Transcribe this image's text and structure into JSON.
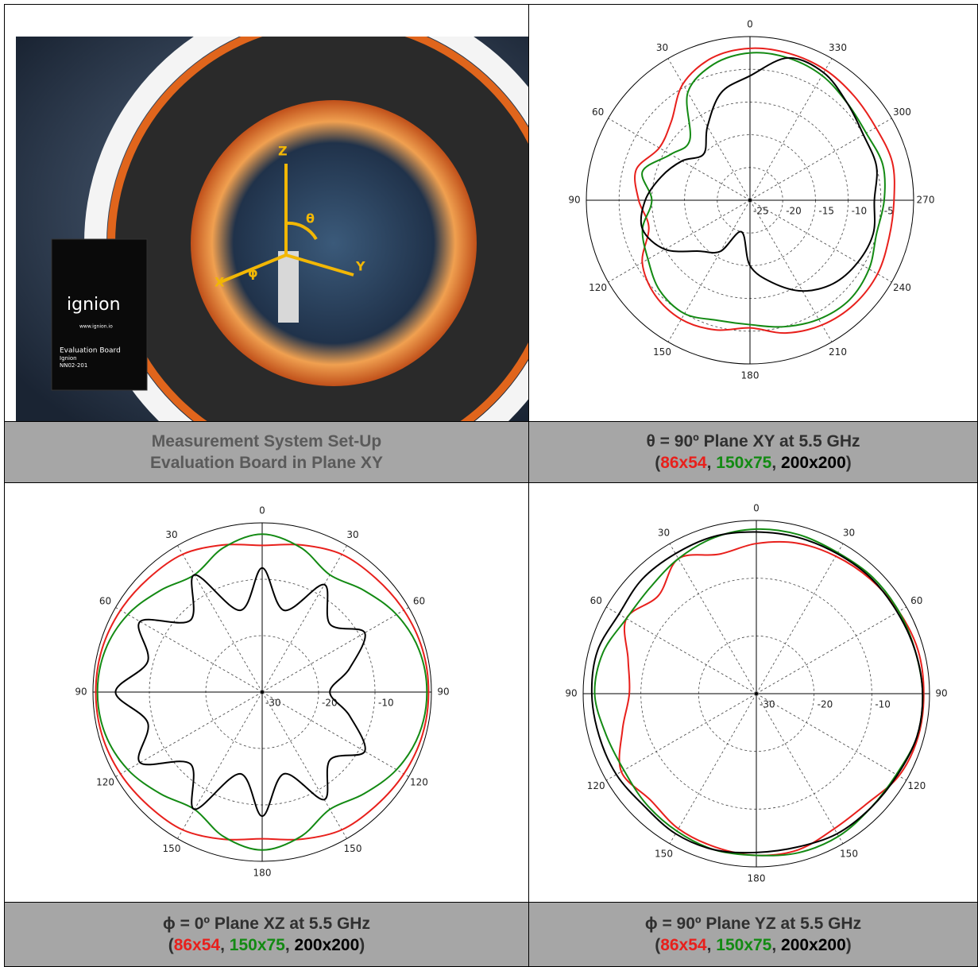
{
  "photo": {
    "caption": [
      "Measurement System Set-Up",
      "Evaluation Board in Plane XY"
    ],
    "texts": [
      "ignion",
      "www.ignion.io",
      "Evaluation Board",
      "Ignion",
      "NN02-201"
    ],
    "axes": [
      "Z",
      "θ",
      "X",
      "Y",
      "ϕ"
    ]
  },
  "chart_data": [
    {
      "type": "polar",
      "title": "θ = 90º Plane XY at 5.5 GHz",
      "legend_open": "(",
      "legend_separator": ", ",
      "legend_close": ")",
      "rlim": [
        -25,
        0
      ],
      "rticks": [
        -25,
        -20,
        -15,
        -10,
        -5
      ],
      "thetaticks": [
        0,
        30,
        60,
        90,
        120,
        150,
        180,
        210,
        240,
        270,
        300,
        330
      ],
      "x": [
        0,
        15,
        30,
        45,
        60,
        75,
        90,
        105,
        120,
        135,
        150,
        165,
        180,
        195,
        210,
        225,
        240,
        255,
        270,
        285,
        300,
        315,
        330,
        345
      ],
      "series": [
        {
          "name": "86x54",
          "color": "#e8201c",
          "values": [
            -1.8,
            -2.5,
            -4.5,
            -8,
            -9,
            -7,
            -8,
            -9,
            -6,
            -4.5,
            -4,
            -4.5,
            -5.5,
            -4,
            -3,
            -2.5,
            -2.5,
            -3,
            -3,
            -2.5,
            -2.8,
            -2.5,
            -2,
            -1.8
          ]
        },
        {
          "name": "150x75",
          "color": "#138a13",
          "values": [
            -2.5,
            -3.5,
            -6,
            -12,
            -11,
            -8,
            -10,
            -8,
            -7,
            -5.5,
            -5,
            -6,
            -6,
            -5,
            -4,
            -3.5,
            -4,
            -5,
            -4.5,
            -4,
            -4.5,
            -4,
            -3,
            -2.5
          ]
        },
        {
          "name": "200x200",
          "color": "#000000",
          "values": [
            -6,
            -8,
            -12,
            -15,
            -13,
            -11,
            -9,
            -8,
            -10,
            -14,
            -16,
            -20,
            -15,
            -12,
            -9,
            -7,
            -6,
            -5.5,
            -6,
            -5,
            -5,
            -4,
            -2.5,
            -2.5
          ]
        }
      ]
    },
    {
      "type": "polar",
      "title": "ϕ = 0º Plane XZ at 5.5 GHz",
      "legend_open": "(",
      "legend_separator": ", ",
      "legend_close": ")",
      "rlim": [
        -30,
        0
      ],
      "rticks": [
        -30,
        -20,
        -10
      ],
      "thetaticks": [
        0,
        30,
        60,
        90,
        120,
        150,
        180,
        {
          "value": 210,
          "label": "150"
        },
        {
          "value": 240,
          "label": "120"
        },
        {
          "value": 270,
          "label": "90"
        },
        {
          "value": 300,
          "label": "60"
        },
        {
          "value": 330,
          "label": "30"
        }
      ],
      "x": [
        0,
        15,
        30,
        45,
        60,
        75,
        90,
        105,
        120,
        135,
        150,
        165,
        180,
        195,
        210,
        225,
        240,
        255,
        270,
        285,
        300,
        315,
        330,
        345
      ],
      "series": [
        {
          "name": "86x54",
          "color": "#e8201c",
          "values": [
            -4,
            -3,
            -1.8,
            -1.5,
            -1,
            -0.6,
            -0.5,
            -0.6,
            -1,
            -1.5,
            -1.8,
            -3,
            -4,
            -3,
            -1.8,
            -1.5,
            -1,
            -0.6,
            -0.5,
            -0.6,
            -1,
            -1.5,
            -1.8,
            -3
          ]
        },
        {
          "name": "150x75",
          "color": "#138a13",
          "values": [
            -2,
            -3.5,
            -6,
            -4.5,
            -2.5,
            -1.2,
            -0.8,
            -1.2,
            -2.5,
            -4.5,
            -6,
            -3.5,
            -2,
            -3.5,
            -6,
            -4.5,
            -2.5,
            -1.2,
            -0.8,
            -1.2,
            -2.5,
            -4.5,
            -6,
            -3.5
          ]
        },
        {
          "name": "200x200",
          "color": "#000000",
          "values": [
            -8,
            -15,
            -6,
            -12,
            -5,
            -9,
            -4,
            -9,
            -5,
            -12,
            -6,
            -15,
            -8,
            -15,
            -8,
            -13,
            -9,
            -14,
            -18,
            -14,
            -9,
            -13,
            -8,
            -15
          ]
        }
      ]
    },
    {
      "type": "polar",
      "title": "ϕ = 90º Plane YZ at 5.5 GHz",
      "legend_open": "(",
      "legend_separator": ", ",
      "legend_close": ")",
      "rlim": [
        -30,
        0
      ],
      "rticks": [
        -30,
        -20,
        -10
      ],
      "thetaticks": [
        0,
        30,
        60,
        90,
        120,
        150,
        180,
        {
          "value": 210,
          "label": "150"
        },
        {
          "value": 240,
          "label": "120"
        },
        {
          "value": 270,
          "label": "90"
        },
        {
          "value": 300,
          "label": "60"
        },
        {
          "value": 330,
          "label": "30"
        }
      ],
      "x": [
        0,
        15,
        30,
        45,
        60,
        75,
        90,
        105,
        120,
        135,
        150,
        165,
        180,
        195,
        210,
        225,
        240,
        255,
        270,
        285,
        300,
        315,
        330,
        345
      ],
      "series": [
        {
          "name": "86x54",
          "color": "#e8201c",
          "values": [
            -4,
            -5,
            -3,
            -6,
            -4,
            -7,
            -8,
            -6,
            -3,
            -4,
            -3,
            -2.5,
            -2,
            -2,
            -3,
            -3,
            -1.5,
            -1,
            -1,
            -1,
            -1.5,
            -2,
            -2.5,
            -3
          ]
        },
        {
          "name": "150x75",
          "color": "#138a13",
          "values": [
            -1.5,
            -2,
            -3,
            -4,
            -4,
            -2.5,
            -2,
            -3,
            -3.5,
            -3,
            -2.5,
            -2,
            -2,
            -1.5,
            -1.5,
            -2,
            -2,
            -1.2,
            -1.2,
            -1.5,
            -1.5,
            -1.5,
            -1.8,
            -1.5
          ]
        },
        {
          "name": "200x200",
          "color": "#000000",
          "values": [
            -2,
            -1.8,
            -2,
            -2,
            -2.5,
            -1.5,
            -1.5,
            -1.8,
            -2,
            -2.5,
            -2,
            -2,
            -2.5,
            -2.5,
            -2,
            -2,
            -1.8,
            -1.2,
            -1.2,
            -1.5,
            -1.8,
            -1.8,
            -2,
            -2
          ]
        }
      ]
    }
  ]
}
